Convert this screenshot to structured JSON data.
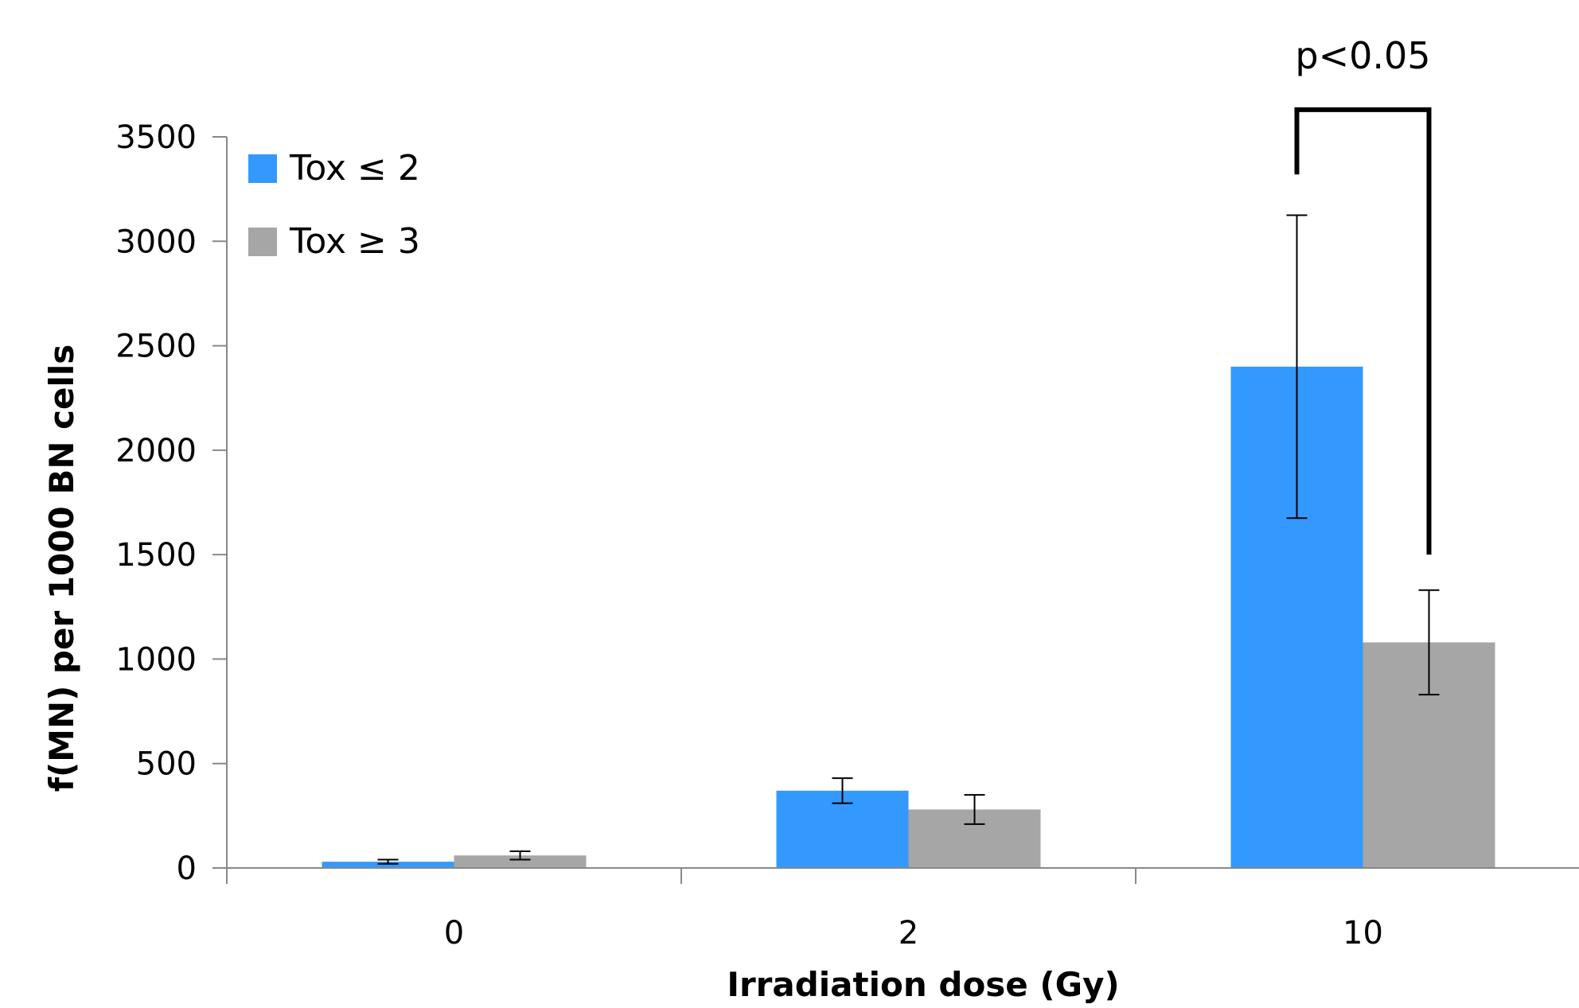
{
  "chart_data": {
    "type": "bar",
    "title": "",
    "xlabel": "Irradiation dose (Gy)",
    "ylabel": "f(MN) per 1000 BN cells",
    "categories": [
      "0",
      "2",
      "10"
    ],
    "ylim": [
      0,
      3500
    ],
    "yticks": [
      "0",
      "500",
      "1000",
      "1500",
      "2000",
      "2500",
      "3000",
      "3500"
    ],
    "grid": false,
    "legend_position": "top-left",
    "series": [
      {
        "name": "Tox ≤ 2",
        "color": "#3399ff",
        "values": [
          30,
          370,
          2400
        ],
        "error": [
          10,
          60,
          725
        ]
      },
      {
        "name": "Tox ≥ 3",
        "color": "#a6a6a6",
        "values": [
          60,
          280,
          1080
        ],
        "error": [
          20,
          70,
          250
        ]
      }
    ],
    "annotations": [
      {
        "label": "p<0.05",
        "category_index": 2,
        "left_series": 0,
        "right_series": 1,
        "left_low": 3320,
        "right_low": 1500,
        "bracket_top": 3630
      }
    ]
  }
}
